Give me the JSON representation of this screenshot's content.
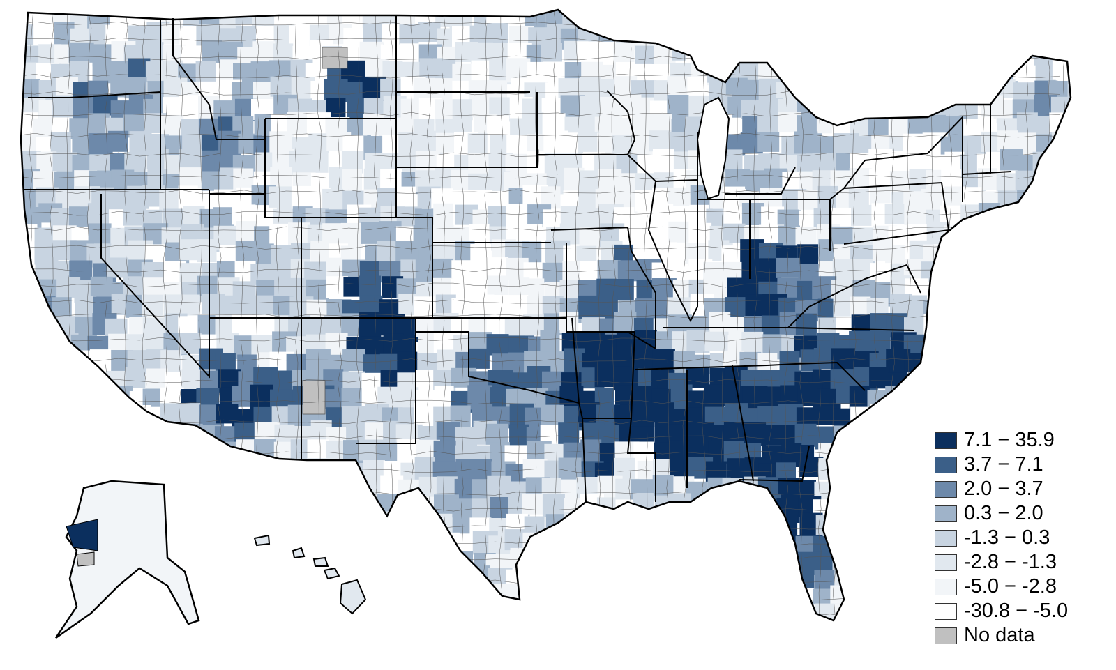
{
  "map": {
    "legend": [
      {
        "label": "7.1 − 35.9",
        "color": "#0b2f5e"
      },
      {
        "label": "3.7 − 7.1",
        "color": "#3b5f88"
      },
      {
        "label": "2.0 − 3.7",
        "color": "#6d89aa"
      },
      {
        "label": "0.3 − 2.0",
        "color": "#9fb3c9"
      },
      {
        "label": "-1.3 − 0.3",
        "color": "#c8d4e1"
      },
      {
        "label": "-2.8 − -1.3",
        "color": "#e1e8ef"
      },
      {
        "label": "-5.0 − -2.8",
        "color": "#f2f5f8"
      },
      {
        "label": "-30.8 − -5.0",
        "color": "#ffffff"
      },
      {
        "label": "No data",
        "color": "#c0c0c0"
      }
    ],
    "colors": {
      "state_border": "#000000",
      "county_border": "#555555",
      "background": "#ffffff"
    },
    "icon": "choropleth-map"
  }
}
